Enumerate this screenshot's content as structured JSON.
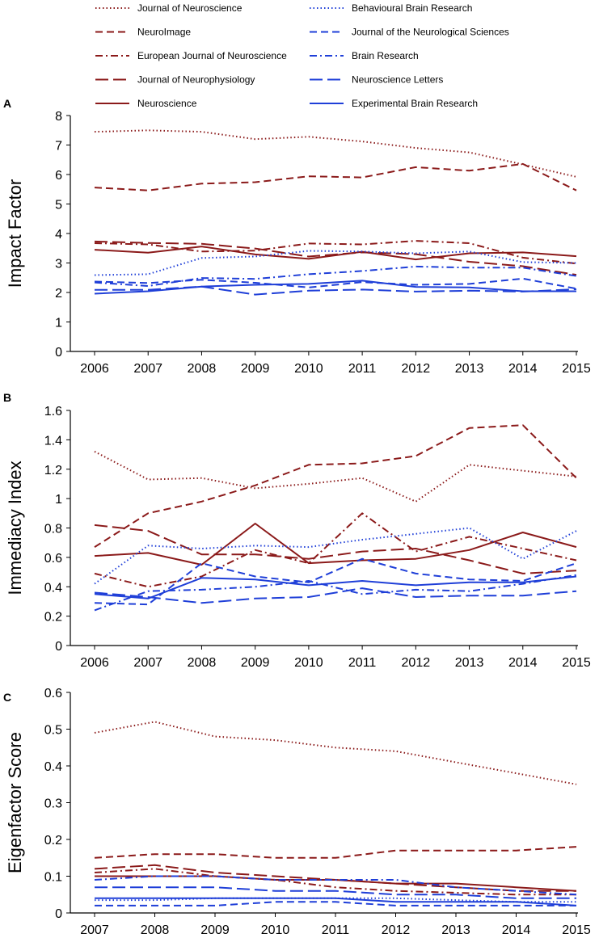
{
  "chart_data": [
    {
      "panel_label": "A",
      "type": "line",
      "ylabel": "Impact Factor",
      "xlabel": "",
      "ylim": [
        0,
        8
      ],
      "yticks": [
        "0",
        "1",
        "2",
        "3",
        "4",
        "5",
        "6",
        "7",
        "8"
      ],
      "x": [
        "2006",
        "2007",
        "2008",
        "2009",
        "2010",
        "2011",
        "2012",
        "2013",
        "2014",
        "2015"
      ],
      "series": [
        {
          "name": "Journal of Neuroscience",
          "values": [
            7.45,
            7.5,
            7.45,
            7.2,
            7.28,
            7.12,
            6.9,
            6.75,
            6.34,
            5.92
          ]
        },
        {
          "name": "NeuroImage",
          "values": [
            5.56,
            5.46,
            5.69,
            5.74,
            5.94,
            5.9,
            6.25,
            6.13,
            6.36,
            5.46
          ]
        },
        {
          "name": "European Journal of Neuroscience",
          "values": [
            3.67,
            3.63,
            3.39,
            3.42,
            3.66,
            3.63,
            3.75,
            3.67,
            3.18,
            2.98
          ]
        },
        {
          "name": "Journal of Neurophysiology",
          "values": [
            3.73,
            3.68,
            3.65,
            3.49,
            3.22,
            3.36,
            3.3,
            3.04,
            2.89,
            2.6
          ]
        },
        {
          "name": "Neuroscience",
          "values": [
            3.45,
            3.35,
            3.56,
            3.29,
            3.14,
            3.38,
            3.12,
            3.33,
            3.36,
            3.23
          ]
        },
        {
          "name": "Behavioural Brain Research",
          "values": [
            2.59,
            2.62,
            3.17,
            3.22,
            3.41,
            3.39,
            3.33,
            3.39,
            3.03,
            3.0
          ]
        },
        {
          "name": "Journal of the Neurological Sciences",
          "values": [
            2.37,
            2.32,
            2.43,
            2.33,
            2.17,
            2.35,
            2.26,
            2.29,
            2.47,
            2.13
          ]
        },
        {
          "name": "Brain Research",
          "values": [
            2.34,
            2.22,
            2.49,
            2.46,
            2.62,
            2.73,
            2.88,
            2.84,
            2.84,
            2.56
          ]
        },
        {
          "name": "Neuroscience Letters",
          "values": [
            2.09,
            2.09,
            2.2,
            1.93,
            2.06,
            2.1,
            2.03,
            2.06,
            2.03,
            2.11
          ]
        },
        {
          "name": "Experimental Brain Research",
          "values": [
            1.96,
            2.04,
            2.2,
            2.26,
            2.29,
            2.4,
            2.19,
            2.17,
            2.04,
            2.04
          ]
        }
      ]
    },
    {
      "panel_label": "B",
      "type": "line",
      "ylabel": "Immediacy Index",
      "xlabel": "",
      "ylim": [
        0,
        1.6
      ],
      "yticks": [
        "0",
        "0.2",
        "0.4",
        "0.6",
        "0.8",
        "1",
        "1.2",
        "1.4",
        "1.6"
      ],
      "x": [
        "2006",
        "2007",
        "2008",
        "2009",
        "2010",
        "2011",
        "2012",
        "2013",
        "2014",
        "2015"
      ],
      "series": [
        {
          "name": "Journal of Neuroscience",
          "values": [
            1.32,
            1.13,
            1.14,
            1.07,
            1.1,
            1.14,
            0.98,
            1.23,
            1.19,
            1.15
          ]
        },
        {
          "name": "NeuroImage",
          "values": [
            0.67,
            0.9,
            0.98,
            1.09,
            1.23,
            1.24,
            1.29,
            1.48,
            1.5,
            1.14
          ]
        },
        {
          "name": "European Journal of Neuroscience",
          "values": [
            0.49,
            0.4,
            0.47,
            0.65,
            0.56,
            0.9,
            0.64,
            0.74,
            0.66,
            0.58
          ]
        },
        {
          "name": "Journal of Neurophysiology",
          "values": [
            0.82,
            0.78,
            0.62,
            0.62,
            0.59,
            0.64,
            0.66,
            0.58,
            0.49,
            0.51
          ]
        },
        {
          "name": "Neuroscience",
          "values": [
            0.61,
            0.63,
            0.55,
            0.83,
            0.56,
            0.58,
            0.59,
            0.65,
            0.77,
            0.67
          ]
        },
        {
          "name": "Behavioural Brain Research",
          "values": [
            0.42,
            0.68,
            0.66,
            0.68,
            0.67,
            0.72,
            0.76,
            0.8,
            0.59,
            0.78
          ]
        },
        {
          "name": "Journal of the Neurological Sciences",
          "values": [
            0.29,
            0.28,
            0.56,
            0.47,
            0.43,
            0.59,
            0.49,
            0.45,
            0.44,
            0.56
          ]
        },
        {
          "name": "Brain Research",
          "values": [
            0.24,
            0.37,
            0.38,
            0.4,
            0.44,
            0.35,
            0.38,
            0.37,
            0.42,
            0.48
          ]
        },
        {
          "name": "Neuroscience Letters",
          "values": [
            0.36,
            0.33,
            0.29,
            0.32,
            0.33,
            0.39,
            0.33,
            0.34,
            0.34,
            0.37
          ]
        },
        {
          "name": "Experimental Brain Research",
          "values": [
            0.35,
            0.32,
            0.46,
            0.45,
            0.41,
            0.44,
            0.41,
            0.43,
            0.43,
            0.47
          ]
        }
      ]
    },
    {
      "panel_label": "C",
      "type": "line",
      "ylabel": "Eigenfactor Score",
      "xlabel": "",
      "ylim": [
        0,
        0.6
      ],
      "yticks": [
        "0",
        "0.1",
        "0.2",
        "0.3",
        "0.4",
        "0.5",
        "0.6"
      ],
      "x": [
        "2007",
        "2008",
        "2009",
        "2010",
        "2011",
        "2012",
        "2013",
        "2014",
        "2015"
      ],
      "series": [
        {
          "name": "Journal of Neuroscience",
          "values": [
            0.49,
            0.52,
            0.48,
            0.47,
            0.45,
            0.44,
            0.41,
            0.38,
            0.35
          ]
        },
        {
          "name": "NeuroImage",
          "values": [
            0.15,
            0.16,
            0.16,
            0.15,
            0.15,
            0.17,
            0.17,
            0.17,
            0.18
          ]
        },
        {
          "name": "European Journal of Neuroscience",
          "values": [
            0.11,
            0.12,
            0.1,
            0.09,
            0.07,
            0.06,
            0.055,
            0.05,
            0.05
          ]
        },
        {
          "name": "Journal of Neurophysiology",
          "values": [
            0.12,
            0.13,
            0.11,
            0.1,
            0.09,
            0.08,
            0.07,
            0.06,
            0.06
          ]
        },
        {
          "name": "Neuroscience",
          "values": [
            0.1,
            0.1,
            0.1,
            0.09,
            0.09,
            0.08,
            0.08,
            0.07,
            0.06
          ]
        },
        {
          "name": "Behavioural Brain Research",
          "values": [
            0.035,
            0.035,
            0.04,
            0.04,
            0.04,
            0.04,
            0.035,
            0.03,
            0.03
          ]
        },
        {
          "name": "Journal of the Neurological Sciences",
          "values": [
            0.02,
            0.02,
            0.02,
            0.03,
            0.03,
            0.02,
            0.02,
            0.02,
            0.02
          ]
        },
        {
          "name": "Brain Research",
          "values": [
            0.09,
            0.1,
            0.1,
            0.09,
            0.09,
            0.09,
            0.07,
            0.06,
            0.05
          ]
        },
        {
          "name": "Neuroscience Letters",
          "values": [
            0.07,
            0.07,
            0.07,
            0.06,
            0.06,
            0.05,
            0.05,
            0.04,
            0.04
          ]
        },
        {
          "name": "Experimental Brain Research",
          "values": [
            0.04,
            0.04,
            0.04,
            0.04,
            0.04,
            0.03,
            0.03,
            0.03,
            0.02
          ]
        }
      ]
    }
  ],
  "legend": [
    {
      "name": "Journal of Neuroscience",
      "color": "#8B1A1A",
      "style": "dotted"
    },
    {
      "name": "Behavioural Brain Research",
      "color": "#1F3FD8",
      "style": "dotted"
    },
    {
      "name": "NeuroImage",
      "color": "#8B1A1A",
      "style": "dashed"
    },
    {
      "name": "Journal of the Neurological Sciences",
      "color": "#1F3FD8",
      "style": "dashed"
    },
    {
      "name": "European Journal of Neuroscience",
      "color": "#8B1A1A",
      "style": "dash-dot"
    },
    {
      "name": "Brain Research",
      "color": "#1F3FD8",
      "style": "dash-dot"
    },
    {
      "name": "Journal of Neurophysiology",
      "color": "#8B1A1A",
      "style": "long-dash"
    },
    {
      "name": "Neuroscience Letters",
      "color": "#1F3FD8",
      "style": "long-dash"
    },
    {
      "name": "Neuroscience",
      "color": "#8B1A1A",
      "style": "solid"
    },
    {
      "name": "Experimental Brain Research",
      "color": "#1F3FD8",
      "style": "solid"
    }
  ]
}
